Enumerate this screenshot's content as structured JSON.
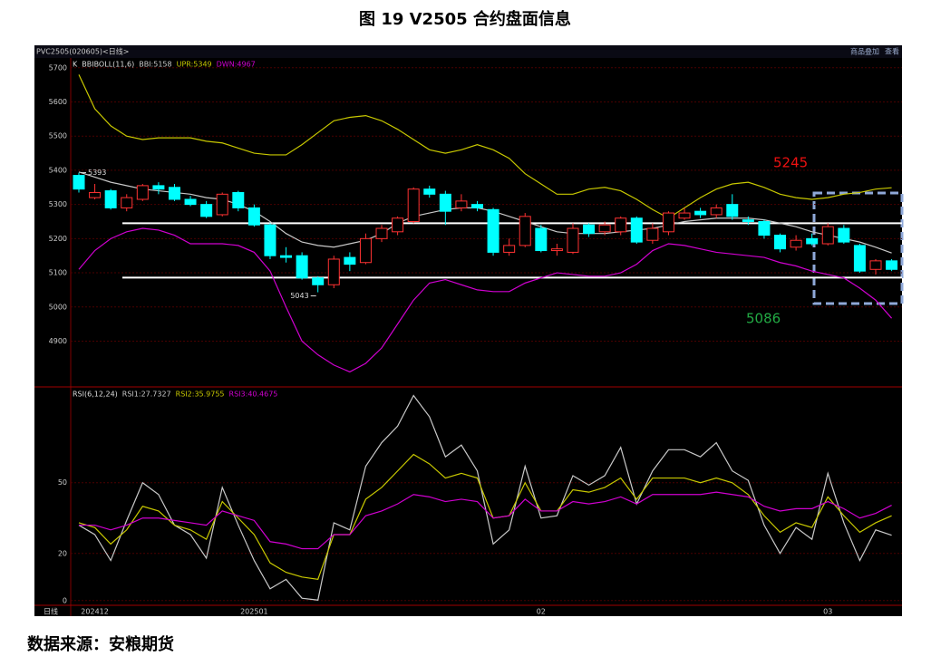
{
  "figure_title": "图 19    V2505 合约盘面信息",
  "source": "数据来源：安粮期货",
  "symbol_label": "PVC2505(020605)<日线>",
  "menu": [
    "商品叠加",
    "查看"
  ],
  "period_label": "日线",
  "chart_data": [
    {
      "type": "candlestick",
      "k_label": "K",
      "indicator": "BBIBOLL(11,6)",
      "up_color": "#ff3232",
      "down_color": "#00ffff",
      "open": [
        5385,
        5320,
        5340,
        5290,
        5315,
        5355,
        5350,
        5315,
        5300,
        5270,
        5335,
        5290,
        5240,
        5150,
        5150,
        5085,
        5065,
        5145,
        5130,
        5200,
        5220,
        5250,
        5345,
        5330,
        5290,
        5300,
        5285,
        5160,
        5180,
        5230,
        5165,
        5160,
        5240,
        5220,
        5220,
        5260,
        5195,
        5220,
        5260,
        5280,
        5270,
        5300,
        5255,
        5250,
        5210,
        5175,
        5200,
        5185,
        5230,
        5180,
        5110,
        5135
      ],
      "high": [
        5393,
        5360,
        5345,
        5330,
        5360,
        5365,
        5360,
        5325,
        5310,
        5335,
        5340,
        5300,
        5245,
        5175,
        5160,
        5090,
        5150,
        5160,
        5215,
        5240,
        5265,
        5350,
        5355,
        5340,
        5330,
        5310,
        5290,
        5200,
        5275,
        5240,
        5185,
        5245,
        5245,
        5250,
        5265,
        5265,
        5245,
        5280,
        5290,
        5290,
        5300,
        5330,
        5265,
        5255,
        5215,
        5210,
        5215,
        5245,
        5240,
        5185,
        5140,
        5140
      ],
      "low": [
        5335,
        5315,
        5285,
        5280,
        5310,
        5330,
        5310,
        5295,
        5260,
        5265,
        5280,
        5235,
        5140,
        5130,
        5080,
        5043,
        5055,
        5105,
        5125,
        5190,
        5210,
        5245,
        5320,
        5240,
        5280,
        5280,
        5150,
        5150,
        5175,
        5160,
        5150,
        5155,
        5205,
        5210,
        5210,
        5185,
        5185,
        5210,
        5255,
        5260,
        5260,
        5255,
        5240,
        5200,
        5160,
        5165,
        5180,
        5180,
        5185,
        5100,
        5095,
        5105
      ],
      "close": [
        5345,
        5335,
        5290,
        5320,
        5355,
        5345,
        5315,
        5300,
        5265,
        5330,
        5290,
        5240,
        5150,
        5145,
        5085,
        5065,
        5140,
        5125,
        5200,
        5230,
        5260,
        5345,
        5330,
        5280,
        5310,
        5290,
        5160,
        5180,
        5265,
        5165,
        5170,
        5230,
        5215,
        5240,
        5260,
        5190,
        5230,
        5275,
        5275,
        5270,
        5290,
        5265,
        5250,
        5210,
        5170,
        5195,
        5185,
        5235,
        5190,
        5105,
        5135,
        5110
      ],
      "series": [
        {
          "name": "BBI:5158",
          "color": "#c8c8c8",
          "values": [
            5395,
            5380,
            5365,
            5355,
            5345,
            5340,
            5335,
            5330,
            5320,
            5315,
            5300,
            5280,
            5250,
            5215,
            5190,
            5180,
            5175,
            5185,
            5195,
            5215,
            5245,
            5265,
            5275,
            5285,
            5290,
            5290,
            5280,
            5265,
            5250,
            5235,
            5220,
            5215,
            5215,
            5215,
            5220,
            5225,
            5230,
            5240,
            5250,
            5255,
            5260,
            5260,
            5260,
            5255,
            5245,
            5235,
            5220,
            5210,
            5200,
            5190,
            5175,
            5158
          ]
        },
        {
          "name": "UPR:5349",
          "color": "#c8c800",
          "values": [
            5680,
            5580,
            5530,
            5500,
            5490,
            5495,
            5495,
            5495,
            5485,
            5480,
            5465,
            5450,
            5445,
            5445,
            5475,
            5510,
            5545,
            5555,
            5560,
            5545,
            5520,
            5490,
            5460,
            5450,
            5460,
            5475,
            5460,
            5435,
            5390,
            5360,
            5330,
            5330,
            5345,
            5350,
            5340,
            5315,
            5285,
            5260,
            5290,
            5320,
            5345,
            5360,
            5365,
            5350,
            5330,
            5320,
            5315,
            5320,
            5330,
            5335,
            5345,
            5349
          ]
        },
        {
          "name": "DWN:4967",
          "color": "#d000d0",
          "values": [
            5110,
            5165,
            5200,
            5220,
            5230,
            5225,
            5210,
            5185,
            5185,
            5185,
            5180,
            5160,
            5105,
            5000,
            4900,
            4860,
            4830,
            4810,
            4835,
            4880,
            4950,
            5020,
            5070,
            5080,
            5065,
            5050,
            5045,
            5045,
            5070,
            5085,
            5100,
            5095,
            5090,
            5090,
            5100,
            5125,
            5165,
            5185,
            5180,
            5170,
            5160,
            5155,
            5150,
            5145,
            5130,
            5120,
            5105,
            5095,
            5085,
            5055,
            5020,
            4967
          ]
        }
      ],
      "levels": [
        {
          "value": 5245,
          "color": "#ee1111"
        },
        {
          "value": 5086,
          "color": "#22aa44"
        }
      ],
      "ylim": [
        4766,
        5726
      ],
      "yticks": [
        4900,
        5000,
        5100,
        5200,
        5300,
        5400,
        5500,
        5600,
        5700
      ],
      "grid": true
    },
    {
      "type": "line",
      "indicator": "RSI(6,12,24)",
      "categories": [
        null,
        "202412",
        null,
        null,
        null,
        null,
        null,
        null,
        null,
        null,
        null,
        "202501",
        null,
        null,
        null,
        null,
        null,
        null,
        null,
        null,
        null,
        null,
        null,
        null,
        null,
        null,
        null,
        null,
        null,
        "02",
        null,
        null,
        null,
        null,
        null,
        null,
        null,
        null,
        null,
        null,
        null,
        null,
        null,
        null,
        null,
        null,
        null,
        "03",
        null,
        null,
        null,
        null
      ],
      "series": [
        {
          "name": "RSI1:27.7327",
          "color": "#c8c8c8",
          "values": [
            32,
            28,
            17,
            34,
            50,
            45,
            32,
            28,
            18,
            48,
            32,
            17,
            5,
            9,
            1,
            0.2,
            33,
            30,
            57,
            67,
            74,
            87,
            78,
            61,
            66,
            55,
            24,
            30,
            57,
            35,
            36,
            53,
            49,
            53,
            65,
            41,
            55,
            64,
            64,
            61,
            67,
            55,
            51,
            32,
            20,
            31,
            26,
            54,
            33,
            17,
            30,
            27.7327
          ]
        },
        {
          "name": "RSI2:35.9755",
          "color": "#c8c800",
          "values": [
            33,
            31,
            24,
            30,
            40,
            38,
            32,
            30,
            26,
            42,
            35,
            28,
            16,
            12,
            10,
            9,
            28,
            28,
            43,
            48,
            55,
            62,
            58,
            52,
            54,
            52,
            35,
            36,
            50,
            38,
            38,
            47,
            46,
            48,
            52,
            43,
            52,
            52,
            52,
            50,
            52,
            50,
            45,
            36,
            29,
            33,
            31,
            44,
            36,
            29,
            33,
            35.9755
          ]
        },
        {
          "name": "RSI3:40.4675",
          "color": "#d000d0",
          "values": [
            32,
            32,
            30,
            32,
            35,
            35,
            34,
            33,
            32,
            38,
            36,
            34,
            25,
            24,
            22,
            22,
            28,
            28,
            36,
            38,
            41,
            45,
            44,
            42,
            43,
            42,
            35,
            36,
            43,
            38,
            38,
            42,
            41,
            42,
            44,
            41,
            45,
            45,
            45,
            45,
            46,
            45,
            44,
            40,
            38,
            39,
            39,
            42,
            39,
            35,
            37,
            40.4675
          ]
        }
      ],
      "ylim": [
        -2,
        89.5
      ],
      "yticks": [
        0,
        20,
        50
      ],
      "grid": true
    }
  ]
}
